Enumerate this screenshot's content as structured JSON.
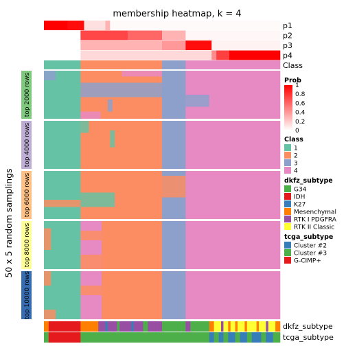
{
  "chart_data": {
    "type": "heatmap",
    "title": "membership heatmap, k = 4",
    "ylabel": "50 x 5 random samplings",
    "class_colors": {
      "1": "#66C2A5",
      "2": "#FC8D62",
      "3": "#8DA0CB",
      "4": "#E78AC3"
    },
    "prob_tracks": [
      {
        "name": "p1",
        "segments": [
          {
            "x": [
              0,
              0.1
            ],
            "p": 1.0
          },
          {
            "x": [
              0.1,
              0.17
            ],
            "p": 0.95
          },
          {
            "x": [
              0.17,
              0.26
            ],
            "p": 0.12
          },
          {
            "x": [
              0.26,
              0.28
            ],
            "p": 0.3
          },
          {
            "x": [
              0.28,
              1.0
            ],
            "p": 0.02
          }
        ]
      },
      {
        "name": "p2",
        "segments": [
          {
            "x": [
              0,
              0.155
            ],
            "p": 0.0
          },
          {
            "x": [
              0.155,
              0.355
            ],
            "p": 0.72
          },
          {
            "x": [
              0.355,
              0.5
            ],
            "p": 0.6
          },
          {
            "x": [
              0.5,
              0.6
            ],
            "p": 0.3
          },
          {
            "x": [
              0.6,
              1.0
            ],
            "p": 0.03
          }
        ]
      },
      {
        "name": "p3",
        "segments": [
          {
            "x": [
              0,
              0.155
            ],
            "p": 0.0
          },
          {
            "x": [
              0.155,
              0.5
            ],
            "p": 0.3
          },
          {
            "x": [
              0.5,
              0.6
            ],
            "p": 0.4
          },
          {
            "x": [
              0.6,
              0.71
            ],
            "p": 0.95
          },
          {
            "x": [
              0.71,
              1.0
            ],
            "p": 0.05
          }
        ]
      },
      {
        "name": "p4",
        "segments": [
          {
            "x": [
              0,
              0.155
            ],
            "p": 0.0
          },
          {
            "x": [
              0.155,
              0.71
            ],
            "p": 0.15
          },
          {
            "x": [
              0.71,
              0.73
            ],
            "p": 0.45
          },
          {
            "x": [
              0.73,
              0.785
            ],
            "p": 0.75
          },
          {
            "x": [
              0.785,
              1.0
            ],
            "p": 1.0
          }
        ]
      }
    ],
    "class_track": {
      "name": "Class",
      "segments": [
        {
          "x": [
            0,
            0.155
          ],
          "class": "1"
        },
        {
          "x": [
            0.155,
            0.5
          ],
          "class": "2"
        },
        {
          "x": [
            0.5,
            0.6
          ],
          "class": "3"
        },
        {
          "x": [
            0.6,
            1.0
          ],
          "class": "4"
        }
      ]
    },
    "row_groups": [
      {
        "label": "top 2000 rows",
        "color": "#7FC97F",
        "segments": [
          {
            "x": [
              0,
              0.155
            ],
            "class": "1"
          },
          {
            "x": [
              0.155,
              0.5
            ],
            "class": "2"
          },
          {
            "x": [
              0.5,
              0.6
            ],
            "class": "3"
          },
          {
            "x": [
              0.6,
              1.0
            ],
            "class": "4"
          }
        ],
        "noise": [
          {
            "x": [
              0,
              0.05
            ],
            "y": [
              0.0,
              0.2
            ],
            "class": "3"
          },
          {
            "x": [
              0.155,
              0.5
            ],
            "y": [
              0.25,
              0.55
            ],
            "class": "3"
          },
          {
            "x": [
              0.27,
              0.29
            ],
            "y": [
              0.6,
              0.85
            ],
            "class": "3"
          },
          {
            "x": [
              0.33,
              0.5
            ],
            "y": [
              0.0,
              0.12
            ],
            "class": "4"
          },
          {
            "x": [
              0.6,
              0.7
            ],
            "y": [
              0.5,
              0.75
            ],
            "class": "3"
          },
          {
            "x": [
              0.155,
              0.24
            ],
            "y": [
              0.85,
              1.0
            ],
            "class": "4"
          }
        ]
      },
      {
        "label": "top 4000 rows",
        "color": "#BEAED4",
        "segments": [
          {
            "x": [
              0,
              0.155
            ],
            "class": "1"
          },
          {
            "x": [
              0.155,
              0.5
            ],
            "class": "2"
          },
          {
            "x": [
              0.5,
              0.6
            ],
            "class": "3"
          },
          {
            "x": [
              0.6,
              1.0
            ],
            "class": "4"
          }
        ],
        "noise": [
          {
            "x": [
              0.155,
              0.19
            ],
            "y": [
              0.0,
              0.25
            ],
            "class": "1"
          },
          {
            "x": [
              0.28,
              0.3
            ],
            "y": [
              0.2,
              0.55
            ],
            "class": "1"
          }
        ]
      },
      {
        "label": "top 6000 rows",
        "color": "#FDC086",
        "segments": [
          {
            "x": [
              0,
              0.155
            ],
            "class": "1"
          },
          {
            "x": [
              0.155,
              0.5
            ],
            "class": "2"
          },
          {
            "x": [
              0.5,
              0.6
            ],
            "class": "3"
          },
          {
            "x": [
              0.6,
              1.0
            ],
            "class": "4"
          }
        ],
        "noise": [
          {
            "x": [
              0.5,
              0.6
            ],
            "y": [
              0.1,
              0.55
            ],
            "class": "2"
          },
          {
            "x": [
              0.155,
              0.3
            ],
            "y": [
              0.45,
              0.75
            ],
            "class": "1"
          },
          {
            "x": [
              0.0,
              0.155
            ],
            "y": [
              0.6,
              0.75
            ],
            "class": "2"
          }
        ]
      },
      {
        "label": "top 8000 rows",
        "color": "#FFFF99",
        "segments": [
          {
            "x": [
              0,
              0.155
            ],
            "class": "1"
          },
          {
            "x": [
              0.155,
              0.245
            ],
            "class": "4"
          },
          {
            "x": [
              0.245,
              0.5
            ],
            "class": "2"
          },
          {
            "x": [
              0.5,
              0.6
            ],
            "class": "3"
          },
          {
            "x": [
              0.6,
              1.0
            ],
            "class": "4"
          }
        ],
        "noise": [
          {
            "x": [
              0.0,
              0.03
            ],
            "y": [
              0.15,
              0.6
            ],
            "class": "2"
          },
          {
            "x": [
              0.155,
              0.245
            ],
            "y": [
              0.2,
              0.4
            ],
            "class": "2"
          },
          {
            "x": [
              0.155,
              0.245
            ],
            "y": [
              0.7,
              1.0
            ],
            "class": "2"
          }
        ]
      },
      {
        "label": "top 10000 rows",
        "color": "#386CB0",
        "segments": [
          {
            "x": [
              0,
              0.155
            ],
            "class": "1"
          },
          {
            "x": [
              0.155,
              0.245
            ],
            "class": "4"
          },
          {
            "x": [
              0.245,
              0.5
            ],
            "class": "2"
          },
          {
            "x": [
              0.5,
              0.6
            ],
            "class": "3"
          },
          {
            "x": [
              0.6,
              1.0
            ],
            "class": "4"
          }
        ],
        "noise": [
          {
            "x": [
              0.0,
              0.03
            ],
            "y": [
              0.0,
              0.3
            ],
            "class": "2"
          },
          {
            "x": [
              0.155,
              0.245
            ],
            "y": [
              0.3,
              0.5
            ],
            "class": "2"
          },
          {
            "x": [
              0.0,
              0.05
            ],
            "y": [
              0.8,
              1.0
            ],
            "class": "2"
          }
        ]
      }
    ],
    "bottom_annotations": [
      {
        "name": "dkfz_subtype",
        "segments": [
          {
            "x": [
              0.0,
              0.02
            ],
            "c": "#FF7F00"
          },
          {
            "x": [
              0.02,
              0.155
            ],
            "c": "#E41A1C"
          },
          {
            "x": [
              0.155,
              0.23
            ],
            "c": "#FF7F00"
          },
          {
            "x": [
              0.23,
              0.26
            ],
            "c": "#984EA3"
          },
          {
            "x": [
              0.26,
              0.27
            ],
            "c": "#377EB8"
          },
          {
            "x": [
              0.27,
              0.31
            ],
            "c": "#984EA3"
          },
          {
            "x": [
              0.31,
              0.32
            ],
            "c": "#4DAF4A"
          },
          {
            "x": [
              0.32,
              0.37
            ],
            "c": "#984EA3"
          },
          {
            "x": [
              0.37,
              0.38
            ],
            "c": "#377EB8"
          },
          {
            "x": [
              0.38,
              0.42
            ],
            "c": "#984EA3"
          },
          {
            "x": [
              0.42,
              0.44
            ],
            "c": "#4DAF4A"
          },
          {
            "x": [
              0.44,
              0.5
            ],
            "c": "#984EA3"
          },
          {
            "x": [
              0.5,
              0.6
            ],
            "c": "#4DAF4A"
          },
          {
            "x": [
              0.6,
              0.62
            ],
            "c": "#984EA3"
          },
          {
            "x": [
              0.62,
              0.7
            ],
            "c": "#4DAF4A"
          },
          {
            "x": [
              0.7,
              0.72
            ],
            "c": "#FF7F00"
          },
          {
            "x": [
              0.72,
              0.75
            ],
            "c": "#FFFF33"
          },
          {
            "x": [
              0.75,
              0.76
            ],
            "c": "#984EA3"
          },
          {
            "x": [
              0.76,
              0.78
            ],
            "c": "#FFFF33"
          },
          {
            "x": [
              0.78,
              0.79
            ],
            "c": "#FF7F00"
          },
          {
            "x": [
              0.79,
              0.81
            ],
            "c": "#FFFF33"
          },
          {
            "x": [
              0.81,
              0.82
            ],
            "c": "#FF7F00"
          },
          {
            "x": [
              0.82,
              0.85
            ],
            "c": "#FFFF33"
          },
          {
            "x": [
              0.85,
              0.86
            ],
            "c": "#FF7F00"
          },
          {
            "x": [
              0.86,
              0.9
            ],
            "c": "#FFFF33"
          },
          {
            "x": [
              0.9,
              0.91
            ],
            "c": "#FF7F00"
          },
          {
            "x": [
              0.91,
              0.94
            ],
            "c": "#FFFF33"
          },
          {
            "x": [
              0.94,
              0.95
            ],
            "c": "#984EA3"
          },
          {
            "x": [
              0.95,
              0.98
            ],
            "c": "#FFFF33"
          },
          {
            "x": [
              0.98,
              1.0
            ],
            "c": "#FF7F00"
          }
        ]
      },
      {
        "name": "tcga_subtype",
        "segments": [
          {
            "x": [
              0.0,
              0.02
            ],
            "c": "#4DAF4A"
          },
          {
            "x": [
              0.02,
              0.155
            ],
            "c": "#E41A1C"
          },
          {
            "x": [
              0.155,
              0.7
            ],
            "c": "#4DAF4A"
          },
          {
            "x": [
              0.7,
              0.72
            ],
            "c": "#377EB8"
          },
          {
            "x": [
              0.72,
              0.74
            ],
            "c": "#4DAF4A"
          },
          {
            "x": [
              0.74,
              0.76
            ],
            "c": "#377EB8"
          },
          {
            "x": [
              0.76,
              0.78
            ],
            "c": "#4DAF4A"
          },
          {
            "x": [
              0.78,
              0.81
            ],
            "c": "#377EB8"
          },
          {
            "x": [
              0.81,
              0.83
            ],
            "c": "#4DAF4A"
          },
          {
            "x": [
              0.83,
              0.86
            ],
            "c": "#377EB8"
          },
          {
            "x": [
              0.86,
              0.88
            ],
            "c": "#4DAF4A"
          },
          {
            "x": [
              0.88,
              0.92
            ],
            "c": "#377EB8"
          },
          {
            "x": [
              0.92,
              0.94
            ],
            "c": "#4DAF4A"
          },
          {
            "x": [
              0.94,
              0.97
            ],
            "c": "#377EB8"
          },
          {
            "x": [
              0.97,
              1.0
            ],
            "c": "#4DAF4A"
          }
        ]
      }
    ],
    "legends": [
      {
        "title": "Prob",
        "type": "gradient",
        "ticks": [
          "1",
          "0.8",
          "0.6",
          "0.4",
          "0.2",
          "0"
        ],
        "colors": [
          "#FF0000",
          "#FFFFFF"
        ]
      },
      {
        "title": "Class",
        "type": "discrete",
        "items": [
          {
            "label": "1",
            "color": "#66C2A5"
          },
          {
            "label": "2",
            "color": "#FC8D62"
          },
          {
            "label": "3",
            "color": "#8DA0CB"
          },
          {
            "label": "4",
            "color": "#E78AC3"
          }
        ]
      },
      {
        "title": "dkfz_subtype",
        "type": "discrete",
        "items": [
          {
            "label": "G34",
            "color": "#4DAF4A"
          },
          {
            "label": "IDH",
            "color": "#E41A1C"
          },
          {
            "label": "K27",
            "color": "#377EB8"
          },
          {
            "label": "Mesenchymal",
            "color": "#FF7F00"
          },
          {
            "label": "RTK I PDGFRA",
            "color": "#984EA3"
          },
          {
            "label": "RTK II Classic",
            "color": "#FFFF33"
          }
        ]
      },
      {
        "title": "tcga_subtype",
        "type": "discrete",
        "items": [
          {
            "label": "Cluster #2",
            "color": "#377EB8"
          },
          {
            "label": "Cluster #3",
            "color": "#4DAF4A"
          },
          {
            "label": "G-CIMP+",
            "color": "#E41A1C"
          }
        ]
      }
    ]
  }
}
